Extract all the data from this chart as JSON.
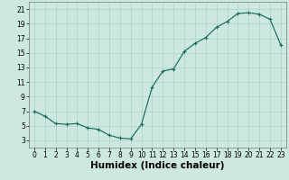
{
  "x": [
    0,
    1,
    2,
    3,
    4,
    5,
    6,
    7,
    8,
    9,
    10,
    11,
    12,
    13,
    14,
    15,
    16,
    17,
    18,
    19,
    20,
    21,
    22,
    23
  ],
  "y": [
    7.0,
    6.3,
    5.3,
    5.2,
    5.3,
    4.7,
    4.5,
    3.7,
    3.3,
    3.2,
    5.2,
    10.3,
    12.5,
    12.8,
    15.2,
    16.3,
    17.1,
    18.5,
    19.3,
    20.4,
    20.5,
    20.3,
    19.6,
    16.1
  ],
  "xlabel": "Humidex (Indice chaleur)",
  "xlim": [
    -0.5,
    23.5
  ],
  "ylim": [
    2.0,
    22.0
  ],
  "yticks": [
    3,
    5,
    7,
    9,
    11,
    13,
    15,
    17,
    19,
    21
  ],
  "xticks": [
    0,
    1,
    2,
    3,
    4,
    5,
    6,
    7,
    8,
    9,
    10,
    11,
    12,
    13,
    14,
    15,
    16,
    17,
    18,
    19,
    20,
    21,
    22,
    23
  ],
  "line_color": "#1a6b5a",
  "bg_color": "#cce8e0",
  "grid_color": "#aad4c8",
  "tick_fontsize": 5.5,
  "xlabel_fontsize": 7.5
}
